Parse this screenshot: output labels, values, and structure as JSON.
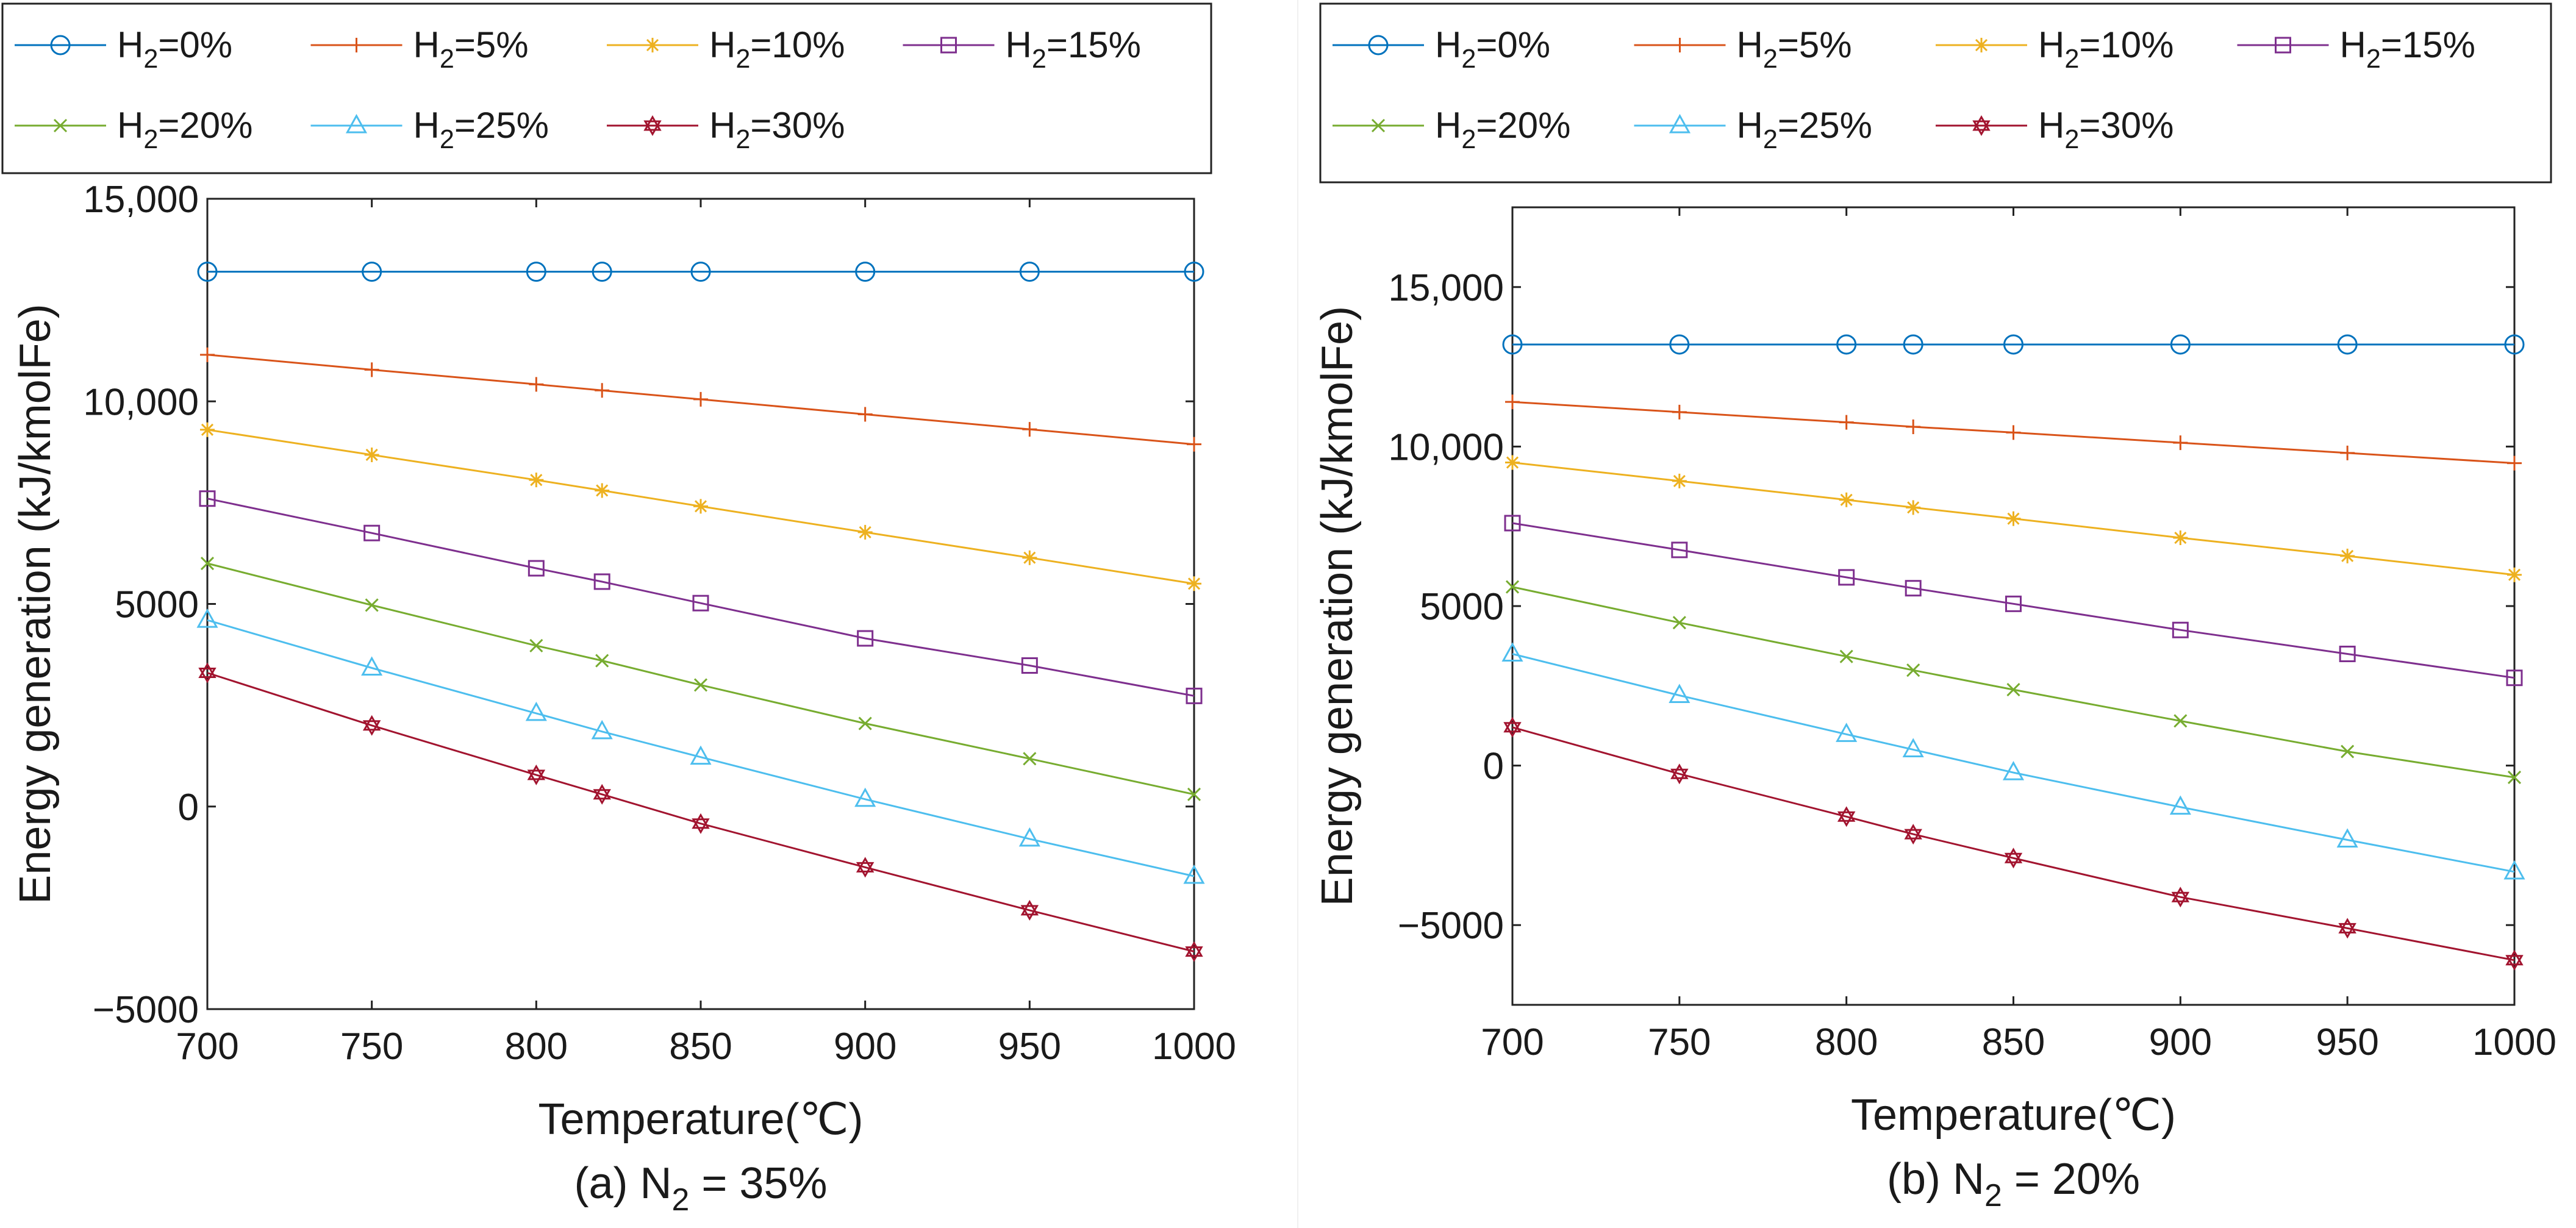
{
  "chart_data": [
    {
      "type": "line",
      "caption_prefix": "(a) N",
      "caption_sub": "2",
      "caption_suffix": " = 35%",
      "xlabel": "Temperature(℃)",
      "ylabel": "Energy generation (kJ/kmolFe)",
      "xlim": [
        700,
        1000
      ],
      "ylim": [
        -5000,
        15000
      ],
      "xticks": [
        700,
        750,
        800,
        850,
        900,
        950,
        1000
      ],
      "xtick_labels": [
        "700",
        "750",
        "800",
        "850",
        "900",
        "950",
        "1000"
      ],
      "yticks": [
        -5000,
        0,
        5000,
        10000,
        15000
      ],
      "ytick_labels": [
        "−5000",
        "0",
        "5000",
        "10,000",
        "15,000"
      ],
      "x": [
        700,
        750,
        800,
        820,
        850,
        900,
        950,
        1000
      ],
      "series": [
        {
          "name": "H2=0%",
          "legend_prefix": "H",
          "legend_sub": "2",
          "legend_suffix": "=0%",
          "marker": "circle",
          "color": "#0072BD",
          "values": [
            13200,
            13200,
            13200,
            13200,
            13200,
            13200,
            13200,
            13200
          ]
        },
        {
          "name": "H2=5%",
          "legend_prefix": "H",
          "legend_sub": "2",
          "legend_suffix": "=5%",
          "marker": "plus",
          "color": "#D95319",
          "values": [
            11150,
            10780,
            10420,
            10270,
            10050,
            9680,
            9310,
            8940
          ]
        },
        {
          "name": "H2=10%",
          "legend_prefix": "H",
          "legend_sub": "2",
          "legend_suffix": "=10%",
          "marker": "star",
          "color": "#EDB120",
          "values": [
            9300,
            8680,
            8060,
            7800,
            7410,
            6770,
            6140,
            5500
          ]
        },
        {
          "name": "H2=15%",
          "legend_prefix": "H",
          "legend_sub": "2",
          "legend_suffix": "=15%",
          "marker": "square",
          "color": "#7E2F8E",
          "values": [
            7600,
            6750,
            5880,
            5550,
            5020,
            4150,
            3480,
            2730
          ]
        },
        {
          "name": "H2=20%",
          "legend_prefix": "H",
          "legend_sub": "2",
          "legend_suffix": "=20%",
          "marker": "x",
          "color": "#77AC30",
          "values": [
            6000,
            4970,
            3970,
            3600,
            3000,
            2050,
            1180,
            300
          ]
        },
        {
          "name": "H2=25%",
          "legend_prefix": "H",
          "legend_sub": "2",
          "legend_suffix": "=25%",
          "marker": "triangle",
          "color": "#4DBEEE",
          "values": [
            4600,
            3420,
            2300,
            1850,
            1220,
            180,
            -800,
            -1720
          ]
        },
        {
          "name": "H2=30%",
          "legend_prefix": "H",
          "legend_sub": "2",
          "legend_suffix": "=30%",
          "marker": "hexagram",
          "color": "#A2142F",
          "values": [
            3300,
            2000,
            780,
            300,
            -420,
            -1500,
            -2560,
            -3580
          ]
        }
      ]
    },
    {
      "type": "line",
      "caption_prefix": "(b) N",
      "caption_sub": "2",
      "caption_suffix": " = 20%",
      "xlabel": "Temperature(℃)",
      "ylabel": "Energy generation (kJ/kmolFe)",
      "xlim": [
        700,
        1000
      ],
      "ylim": [
        -7500,
        17500
      ],
      "xticks": [
        700,
        750,
        800,
        850,
        900,
        950,
        1000
      ],
      "xtick_labels": [
        "700",
        "750",
        "800",
        "850",
        "900",
        "950",
        "1000"
      ],
      "yticks": [
        -5000,
        0,
        5000,
        10000,
        15000
      ],
      "ytick_labels": [
        "−5000",
        "0",
        "5000",
        "10,000",
        "15,000"
      ],
      "x": [
        700,
        750,
        800,
        820,
        850,
        900,
        950,
        1000
      ],
      "series": [
        {
          "name": "H2=0%",
          "legend_prefix": "H",
          "legend_sub": "2",
          "legend_suffix": "=0%",
          "marker": "circle",
          "color": "#0072BD",
          "values": [
            13200,
            13200,
            13200,
            13200,
            13200,
            13200,
            13200,
            13200
          ]
        },
        {
          "name": "H2=5%",
          "legend_prefix": "H",
          "legend_sub": "2",
          "legend_suffix": "=5%",
          "marker": "plus",
          "color": "#D95319",
          "values": [
            11400,
            11080,
            10760,
            10620,
            10440,
            10120,
            9800,
            9480
          ]
        },
        {
          "name": "H2=10%",
          "legend_prefix": "H",
          "legend_sub": "2",
          "legend_suffix": "=10%",
          "marker": "star",
          "color": "#EDB120",
          "values": [
            9500,
            8920,
            8330,
            8090,
            7740,
            7140,
            6570,
            5980
          ]
        },
        {
          "name": "H2=15%",
          "legend_prefix": "H",
          "legend_sub": "2",
          "legend_suffix": "=15%",
          "marker": "square",
          "color": "#7E2F8E",
          "values": [
            7600,
            6760,
            5900,
            5560,
            5070,
            4250,
            3500,
            2750
          ]
        },
        {
          "name": "H2=20%",
          "legend_prefix": "H",
          "legend_sub": "2",
          "legend_suffix": "=20%",
          "marker": "x",
          "color": "#77AC30",
          "values": [
            5600,
            4480,
            3420,
            2990,
            2380,
            1400,
            440,
            -370
          ]
        },
        {
          "name": "H2=25%",
          "legend_prefix": "H",
          "legend_sub": "2",
          "legend_suffix": "=25%",
          "marker": "triangle",
          "color": "#4DBEEE",
          "values": [
            3500,
            2200,
            980,
            500,
            -220,
            -1300,
            -2330,
            -3330
          ]
        },
        {
          "name": "H2=30%",
          "legend_prefix": "H",
          "legend_sub": "2",
          "legend_suffix": "=30%",
          "marker": "hexagram",
          "color": "#A2142F",
          "values": [
            1200,
            -260,
            -1600,
            -2150,
            -2900,
            -4120,
            -5100,
            -6100
          ]
        }
      ]
    }
  ]
}
